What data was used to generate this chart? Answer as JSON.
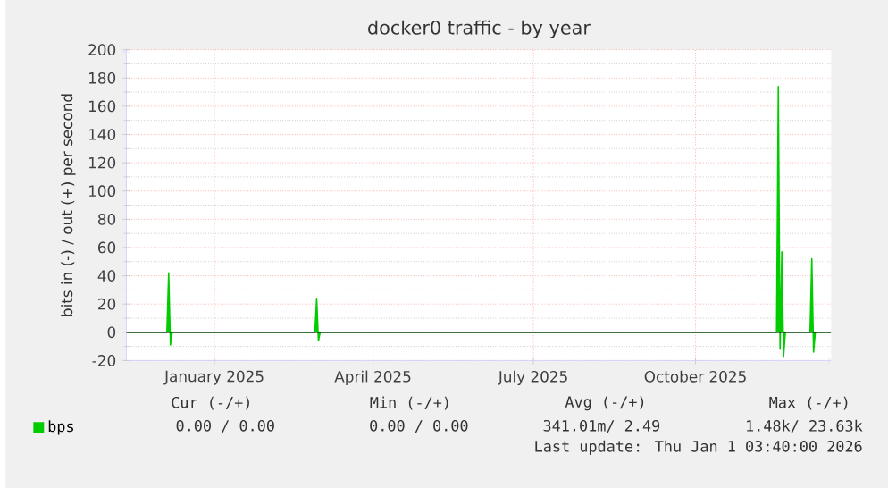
{
  "chart_data": {
    "type": "line",
    "title": "docker0 traffic - by year",
    "ylabel": "bits in (-) / out (+) per second",
    "x": [
      "2024-11-27",
      "2024-12-20",
      "2024-12-21",
      "2024-12-22",
      "2024-12-23",
      "2025-03-14",
      "2025-03-15",
      "2025-03-16",
      "2025-03-17",
      "2025-12-01",
      "2025-12-02",
      "2025-12-03",
      "2025-12-04",
      "2025-12-05",
      "2025-12-06",
      "2025-12-20",
      "2025-12-21",
      "2025-12-22",
      "2025-12-23",
      "2026-01-01"
    ],
    "series": [
      {
        "name": "bps",
        "color": "#00cc00",
        "values": [
          0,
          0,
          42,
          -9,
          0,
          0,
          24,
          -6,
          0,
          0,
          174,
          -12,
          57,
          -17,
          0,
          0,
          52,
          -14,
          0,
          0
        ]
      }
    ],
    "xlim": [
      "2024-11-27",
      "2026-01-01"
    ],
    "xticks": [
      {
        "value": "2025-01-16",
        "label": "January 2025"
      },
      {
        "value": "2025-04-16",
        "label": "April 2025"
      },
      {
        "value": "2025-07-16",
        "label": "July 2025"
      },
      {
        "value": "2025-10-16",
        "label": "October 2025"
      }
    ],
    "ylim": [
      -20,
      200
    ],
    "yticks": [
      -20,
      0,
      20,
      40,
      60,
      80,
      100,
      120,
      140,
      160,
      180,
      200
    ],
    "grid": true,
    "legend": "bottom left",
    "ref_lines": [
      {
        "axis": "y",
        "value": 0,
        "color": "#000000"
      }
    ],
    "annotations": [
      "Cur (-/+)",
      "Min (-/+)",
      "Avg (-/+)",
      "Max (-/+)",
      "0.00 /   0.00",
      "0.00 /   0.00",
      "341.01m/   2.49",
      "1.48k/  23.63k",
      "Last update: Thu Jan  1 03:40:00 2026"
    ]
  }
}
